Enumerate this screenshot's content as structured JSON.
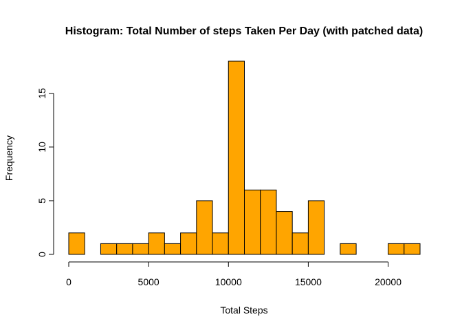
{
  "chart_data": {
    "type": "bar",
    "title": "Histogram: Total Number of steps Taken Per Day (with patched data)",
    "xlabel": "Total Steps",
    "ylabel": "Frequency",
    "bin_width": 1000,
    "bin_starts": [
      0,
      1000,
      2000,
      3000,
      4000,
      5000,
      6000,
      7000,
      8000,
      9000,
      10000,
      11000,
      12000,
      13000,
      14000,
      15000,
      16000,
      17000,
      18000,
      19000,
      20000,
      21000
    ],
    "values": [
      2,
      0,
      1,
      1,
      1,
      2,
      1,
      2,
      5,
      2,
      18,
      6,
      6,
      4,
      2,
      5,
      0,
      1,
      0,
      0,
      1,
      1
    ],
    "xlim": [
      0,
      22000
    ],
    "ylim": [
      0,
      18
    ],
    "x_ticks": [
      0,
      5000,
      10000,
      15000,
      20000
    ],
    "y_ticks": [
      0,
      5,
      10,
      15
    ],
    "bar_color": "#FFA500",
    "bar_border_color": "#000000"
  }
}
